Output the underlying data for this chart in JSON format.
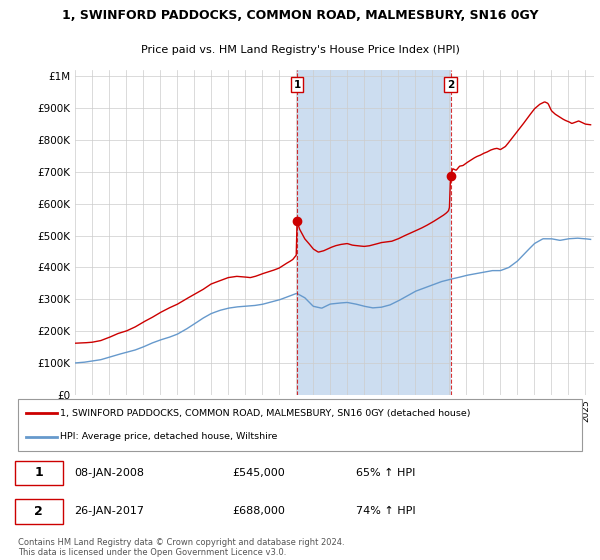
{
  "title_line1": "1, SWINFORD PADDOCKS, COMMON ROAD, MALMESBURY, SN16 0GY",
  "title_line2": "Price paid vs. HM Land Registry's House Price Index (HPI)",
  "ytick_values": [
    0,
    100000,
    200000,
    300000,
    400000,
    500000,
    600000,
    700000,
    800000,
    900000,
    1000000
  ],
  "ylim": [
    0,
    1020000
  ],
  "xlim_start": 1995.0,
  "xlim_end": 2025.5,
  "xtick_years": [
    1995,
    1996,
    1997,
    1998,
    1999,
    2000,
    2001,
    2002,
    2003,
    2004,
    2005,
    2006,
    2007,
    2008,
    2009,
    2010,
    2011,
    2012,
    2013,
    2014,
    2015,
    2016,
    2017,
    2018,
    2019,
    2020,
    2021,
    2022,
    2023,
    2024,
    2025
  ],
  "red_line_color": "#cc0000",
  "blue_line_color": "#6699cc",
  "sale1_x": 2008.05,
  "sale1_y": 545000,
  "sale1_label": "1",
  "sale2_x": 2017.07,
  "sale2_y": 688000,
  "sale2_label": "2",
  "dashed_line_color": "#cc0000",
  "shade_color": "#ccddf0",
  "legend_red_label": "1, SWINFORD PADDOCKS, COMMON ROAD, MALMESBURY, SN16 0GY (detached house)",
  "legend_blue_label": "HPI: Average price, detached house, Wiltshire",
  "note1_label": "1",
  "note1_date": "08-JAN-2008",
  "note1_price": "£545,000",
  "note1_hpi": "65% ↑ HPI",
  "note2_label": "2",
  "note2_date": "26-JAN-2017",
  "note2_price": "£688,000",
  "note2_hpi": "74% ↑ HPI",
  "footer": "Contains HM Land Registry data © Crown copyright and database right 2024.\nThis data is licensed under the Open Government Licence v3.0.",
  "background_color": "#ffffff",
  "plot_bg_color": "#ffffff",
  "grid_color": "#cccccc"
}
